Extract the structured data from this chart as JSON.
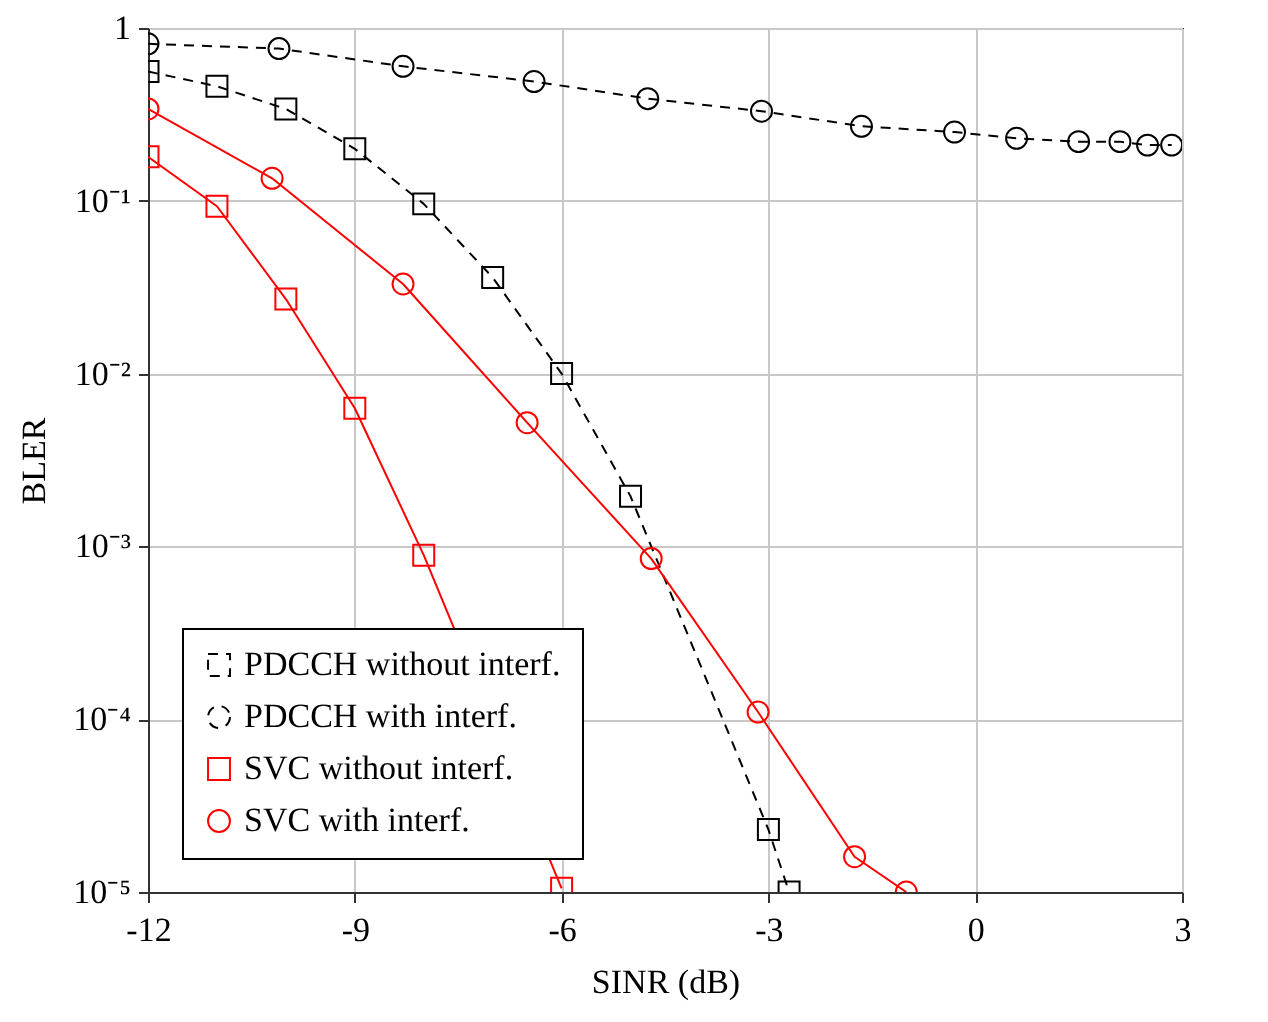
{
  "chart_data": {
    "type": "line",
    "xlabel": "SINR (dB)",
    "ylabel": "BLER",
    "xlim": [
      -12,
      3
    ],
    "xticks": [
      -12,
      -9,
      -6,
      -3,
      0,
      3
    ],
    "ylim": [
      1e-05,
      1
    ],
    "yticks": [
      {
        "value": 1,
        "label": "1"
      },
      {
        "value": 0.1,
        "label": "10⁻¹"
      },
      {
        "value": 0.01,
        "label": "10⁻²"
      },
      {
        "value": 0.001,
        "label": "10⁻³"
      },
      {
        "value": 0.0001,
        "label": "10⁻⁴"
      },
      {
        "value": 1e-05,
        "label": "10⁻⁵"
      }
    ],
    "log": "y",
    "grid": true,
    "legend": "bottom left",
    "series": [
      {
        "name": "PDCCH without interf.",
        "color": "#000000",
        "marker": "square",
        "line_style": "dashed",
        "x": [
          -12,
          -11,
          -10,
          -9,
          -8,
          -7,
          -6,
          -5,
          -3,
          -2.7
        ],
        "values": [
          0.56,
          0.46,
          0.34,
          0.2,
          0.096,
          0.036,
          0.01,
          0.00195,
          2.3e-05,
          1e-05
        ]
      },
      {
        "name": "PDCCH with interf.",
        "color": "#000000",
        "marker": "circle",
        "line_style": "dashed",
        "x": [
          -12,
          -10.1,
          -8.3,
          -6.4,
          -4.75,
          -3.1,
          -1.65,
          -0.3,
          0.6,
          1.5,
          2.1,
          2.5,
          2.85
        ],
        "values": [
          0.81,
          0.76,
          0.6,
          0.49,
          0.39,
          0.33,
          0.27,
          0.25,
          0.23,
          0.22,
          0.22,
          0.21,
          0.21
        ]
      },
      {
        "name": "SVC without interf.",
        "color": "#ff0000",
        "marker": "square",
        "line_style": "solid",
        "x": [
          -12,
          -11,
          -10,
          -9,
          -8,
          -6
        ],
        "values": [
          0.18,
          0.093,
          0.027,
          0.0063,
          0.00089,
          1.05e-05
        ]
      },
      {
        "name": "SVC with interf.",
        "color": "#ff0000",
        "marker": "circle",
        "line_style": "solid",
        "x": [
          -12,
          -10.2,
          -8.3,
          -6.5,
          -4.7,
          -3.15,
          -1.75,
          -1.0
        ],
        "values": [
          0.34,
          0.135,
          0.033,
          0.0052,
          0.00085,
          0.00011,
          1.6e-05,
          1e-05
        ]
      }
    ]
  }
}
